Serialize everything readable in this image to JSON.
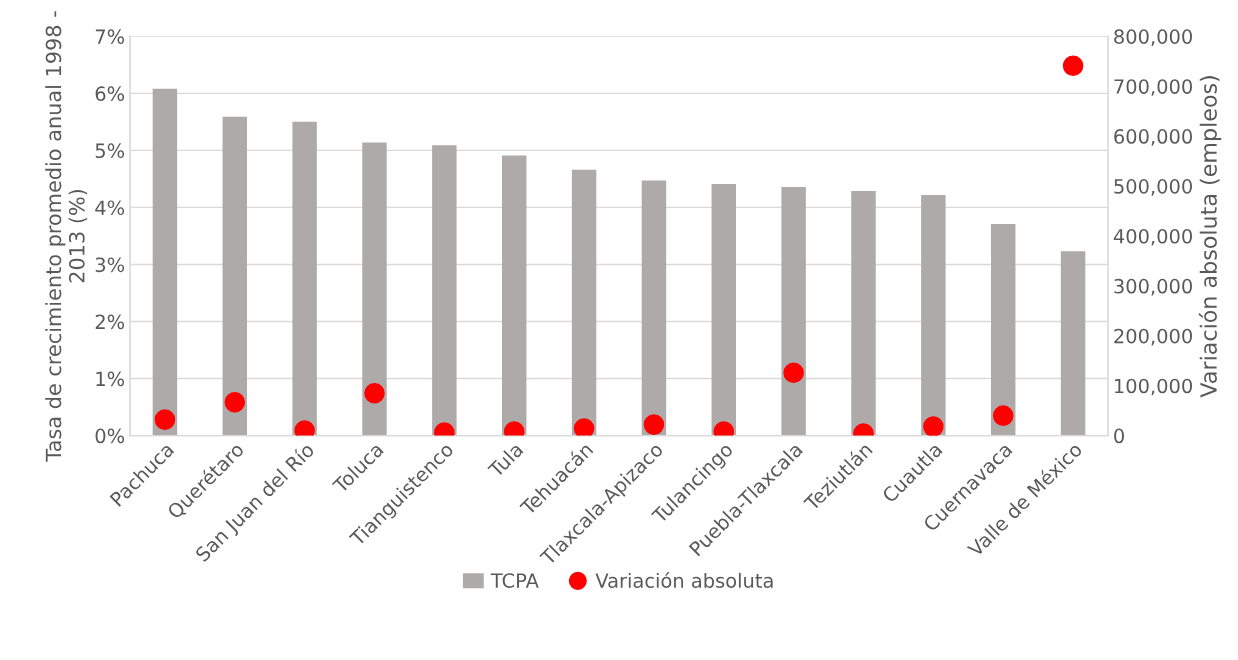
{
  "chart_data": {
    "type": "bar",
    "categories": [
      "Pachuca",
      "Querétaro",
      "San Juan del Río",
      "Toluca",
      "Tianguistenco",
      "Tula",
      "Tehuacán",
      "Tlaxcala-Apizaco",
      "Tulancingo",
      "Puebla-Tlaxcala",
      "Teziutlán",
      "Cuautla",
      "Cuernavaca",
      "Valle de México"
    ],
    "series": [
      {
        "name": "TCPA",
        "color": "#aeaaaa",
        "values": [
          6.08,
          5.59,
          5.5,
          5.14,
          5.09,
          4.91,
          4.66,
          4.47,
          4.41,
          4.36,
          4.29,
          4.22,
          3.71,
          3.23
        ]
      },
      {
        "name": "Variación absoluta",
        "type": "scatter",
        "axis": "y2",
        "color": "#ff0000",
        "values": [
          32000,
          67000,
          10000,
          85000,
          6000,
          8000,
          14000,
          22000,
          8000,
          126000,
          4000,
          18000,
          40000,
          741000
        ]
      }
    ],
    "ylabel": "Tasa de crecimiento promedio anual 1998 - 2013 (%)",
    "y2label": "Variación absoluta (empleos)",
    "ylim": [
      0,
      7
    ],
    "yticks": [
      {
        "value": 0,
        "label": "0%"
      },
      {
        "value": 1,
        "label": "1%"
      },
      {
        "value": 2,
        "label": "2%"
      },
      {
        "value": 3,
        "label": "3%"
      },
      {
        "value": 4,
        "label": "4%"
      },
      {
        "value": 5,
        "label": "5%"
      },
      {
        "value": 6,
        "label": "6%"
      },
      {
        "value": 7,
        "label": "7%"
      }
    ],
    "y2lim": [
      0,
      800000
    ],
    "y2ticks": [
      0,
      {
        "value": 100000,
        "label": "100,000"
      },
      {
        "value": 200000,
        "label": "200,000"
      },
      {
        "value": 300000,
        "label": "300,000"
      },
      {
        "value": 400000,
        "label": "400,000"
      },
      {
        "value": 500000,
        "label": "500,000"
      },
      {
        "value": 600000,
        "label": "600,000"
      },
      {
        "value": 700000,
        "label": "700,000"
      },
      {
        "value": 800000,
        "label": "800,000"
      }
    ],
    "grid": "y",
    "legend": "bottom",
    "marker": "circle"
  }
}
